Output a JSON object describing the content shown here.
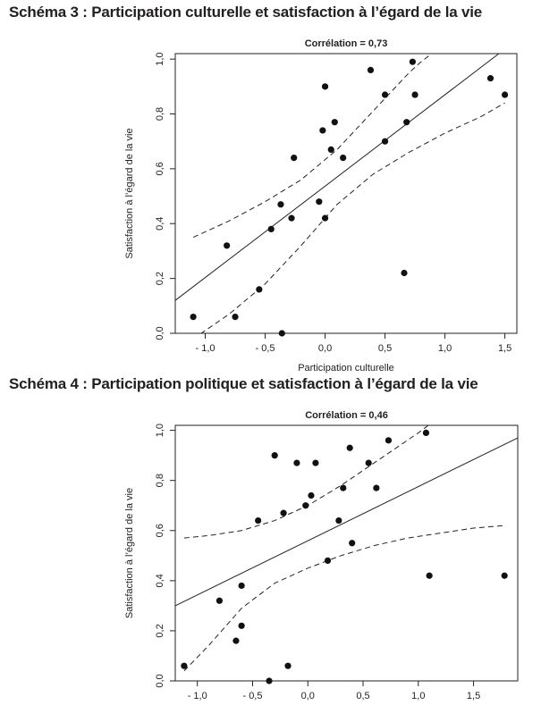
{
  "chart_data": [
    {
      "type": "scatter",
      "title": "Schéma 3 : Participation culturelle et satisfaction à l’égard de la vie",
      "subtitle": "Corrélation = 0,73",
      "xlabel": "Participation culturelle",
      "ylabel": "Satisfaction à l’égard de la vie",
      "xlim": [
        -1.25,
        1.6
      ],
      "ylim": [
        0.0,
        1.02
      ],
      "xticks": [
        "- 1,0",
        "- 0,5",
        "0,0",
        "0,5",
        "1,0",
        "1,5"
      ],
      "xtick_values": [
        -1.0,
        -0.5,
        0.0,
        0.5,
        1.0,
        1.5
      ],
      "yticks": [
        "0,0",
        "0,2",
        "0,4",
        "0,6",
        "0,8",
        "1,0"
      ],
      "ytick_values": [
        0.0,
        0.2,
        0.4,
        0.6,
        0.8,
        1.0
      ],
      "points": [
        {
          "x": -1.1,
          "y": 0.06
        },
        {
          "x": -0.82,
          "y": 0.32
        },
        {
          "x": -0.75,
          "y": 0.06
        },
        {
          "x": -0.55,
          "y": 0.16
        },
        {
          "x": -0.45,
          "y": 0.38
        },
        {
          "x": -0.37,
          "y": 0.47
        },
        {
          "x": -0.36,
          "y": 0.0
        },
        {
          "x": -0.28,
          "y": 0.42
        },
        {
          "x": -0.26,
          "y": 0.64
        },
        {
          "x": -0.05,
          "y": 0.48
        },
        {
          "x": -0.02,
          "y": 0.74
        },
        {
          "x": 0.0,
          "y": 0.42
        },
        {
          "x": 0.0,
          "y": 0.9
        },
        {
          "x": 0.05,
          "y": 0.67
        },
        {
          "x": 0.08,
          "y": 0.77
        },
        {
          "x": 0.15,
          "y": 0.64
        },
        {
          "x": 0.38,
          "y": 0.96
        },
        {
          "x": 0.5,
          "y": 0.87
        },
        {
          "x": 0.5,
          "y": 0.7
        },
        {
          "x": 0.66,
          "y": 0.22
        },
        {
          "x": 0.68,
          "y": 0.77
        },
        {
          "x": 0.73,
          "y": 0.99
        },
        {
          "x": 0.75,
          "y": 0.87
        },
        {
          "x": 1.38,
          "y": 0.93
        },
        {
          "x": 1.5,
          "y": 0.87
        }
      ],
      "regression": {
        "x": [
          -1.25,
          1.45
        ],
        "y": [
          0.12,
          1.02
        ]
      },
      "ci_lower": {
        "x": [
          -1.1,
          -0.8,
          -0.5,
          -0.2,
          0.1,
          0.4,
          0.7,
          1.0,
          1.3,
          1.5
        ],
        "y": [
          -0.02,
          0.07,
          0.18,
          0.32,
          0.47,
          0.58,
          0.66,
          0.73,
          0.79,
          0.84
        ]
      },
      "ci_upper": {
        "x": [
          -1.1,
          -0.8,
          -0.5,
          -0.2,
          0.1,
          0.4,
          0.55,
          0.7,
          0.8,
          0.92
        ],
        "y": [
          0.35,
          0.41,
          0.48,
          0.56,
          0.67,
          0.81,
          0.88,
          0.95,
          0.99,
          1.03
        ]
      }
    },
    {
      "type": "scatter",
      "title": "Schéma 4 : Participation politique et satisfaction à l’égard de la vie",
      "subtitle": "Corrélation = 0,46",
      "xlabel": "",
      "ylabel": "Satisfaction à l’égard de la vie",
      "xlim": [
        -1.2,
        1.9
      ],
      "ylim": [
        0.0,
        1.02
      ],
      "xticks": [
        "- 1,0",
        "- 0,5",
        "0,0",
        "0,5",
        "1,0",
        "1,5"
      ],
      "xtick_values": [
        -1.0,
        -0.5,
        0.0,
        0.5,
        1.0,
        1.5
      ],
      "yticks": [
        "0,0",
        "0,2",
        "0,4",
        "0,6",
        "0,8",
        "1,0"
      ],
      "ytick_values": [
        0.0,
        0.2,
        0.4,
        0.6,
        0.8,
        1.0
      ],
      "points": [
        {
          "x": -1.12,
          "y": 0.06
        },
        {
          "x": -0.8,
          "y": 0.32
        },
        {
          "x": -0.6,
          "y": 0.38
        },
        {
          "x": -0.6,
          "y": 0.22
        },
        {
          "x": -0.65,
          "y": 0.16
        },
        {
          "x": -0.45,
          "y": 0.64
        },
        {
          "x": -0.3,
          "y": 0.9
        },
        {
          "x": -0.22,
          "y": 0.67
        },
        {
          "x": -0.18,
          "y": 0.06
        },
        {
          "x": -0.35,
          "y": 0.0
        },
        {
          "x": -0.1,
          "y": 0.87
        },
        {
          "x": -0.02,
          "y": 0.7
        },
        {
          "x": 0.03,
          "y": 0.74
        },
        {
          "x": 0.07,
          "y": 0.87
        },
        {
          "x": 0.18,
          "y": 0.48
        },
        {
          "x": 0.28,
          "y": 0.64
        },
        {
          "x": 0.32,
          "y": 0.77
        },
        {
          "x": 0.38,
          "y": 0.93
        },
        {
          "x": 0.4,
          "y": 0.55
        },
        {
          "x": 0.55,
          "y": 0.87
        },
        {
          "x": 0.62,
          "y": 0.77
        },
        {
          "x": 0.73,
          "y": 0.96
        },
        {
          "x": 1.07,
          "y": 0.99
        },
        {
          "x": 1.1,
          "y": 0.42
        },
        {
          "x": 1.78,
          "y": 0.42
        }
      ],
      "regression": {
        "x": [
          -1.2,
          1.9
        ],
        "y": [
          0.3,
          0.97
        ]
      },
      "ci_lower": {
        "x": [
          -1.12,
          -0.9,
          -0.6,
          -0.3,
          0.0,
          0.3,
          0.6,
          0.9,
          1.2,
          1.5,
          1.78
        ],
        "y": [
          0.04,
          0.14,
          0.29,
          0.39,
          0.45,
          0.5,
          0.54,
          0.57,
          0.59,
          0.61,
          0.62
        ]
      },
      "ci_upper": {
        "x": [
          -1.12,
          -0.9,
          -0.6,
          -0.3,
          0.0,
          0.3,
          0.6,
          0.9,
          1.0,
          1.12
        ],
        "y": [
          0.57,
          0.58,
          0.6,
          0.64,
          0.7,
          0.78,
          0.87,
          0.96,
          0.99,
          1.03
        ]
      }
    }
  ]
}
